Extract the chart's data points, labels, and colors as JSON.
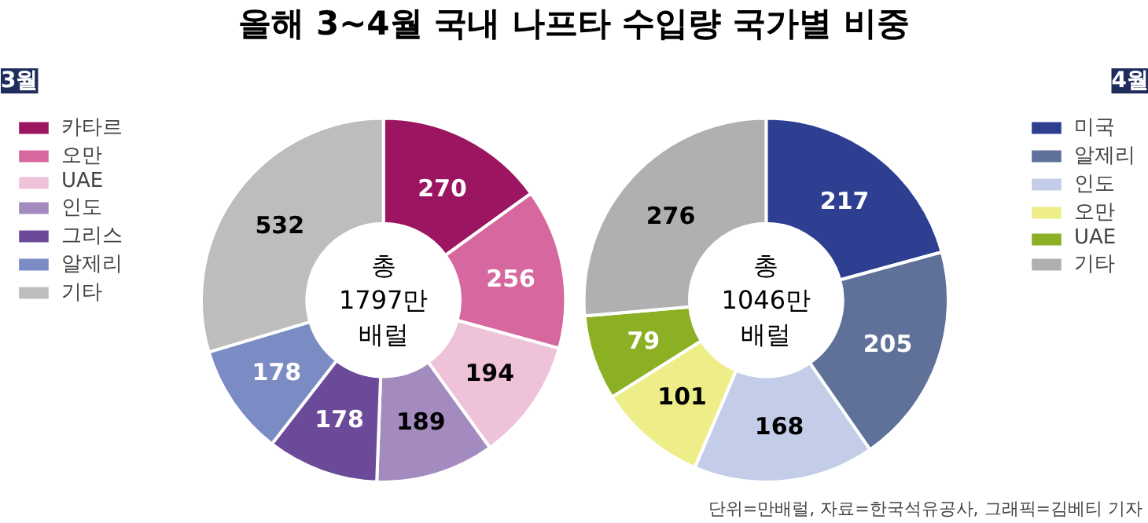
{
  "chart_data": [
    {
      "type": "donut",
      "title": "올해 3~4월 국내 나프타 수입량 국가별 비중",
      "subtitle": "3월",
      "categories": [
        "카타르",
        "오만",
        "UAE",
        "인도",
        "그리스",
        "알제리",
        "기타"
      ],
      "values": [
        270,
        256,
        194,
        189,
        178,
        178,
        532
      ],
      "colors": [
        "#9b1561",
        "#d6679f",
        "#eec2d8",
        "#a48bbf",
        "#6c4a9a",
        "#7b8bc4",
        "#bdbdbd"
      ],
      "data_labels": true,
      "legend": "left",
      "annotations": [
        "총\n1797만\n배럴"
      ]
    },
    {
      "type": "donut",
      "subtitle": "4월",
      "categories": [
        "미국",
        "알제리",
        "인도",
        "오만",
        "UAE",
        "기타"
      ],
      "values": [
        217,
        205,
        168,
        101,
        79,
        276
      ],
      "colors": [
        "#2e3f92",
        "#5f7199",
        "#c3cde8",
        "#eeee88",
        "#8cb024",
        "#b0b0b0"
      ],
      "data_labels": true,
      "legend": "right",
      "annotations": [
        "총\n1046만\n배럴",
        "단위=만배럴, 자료=한국석유공사, 그래픽=김베티 기자"
      ]
    }
  ]
}
